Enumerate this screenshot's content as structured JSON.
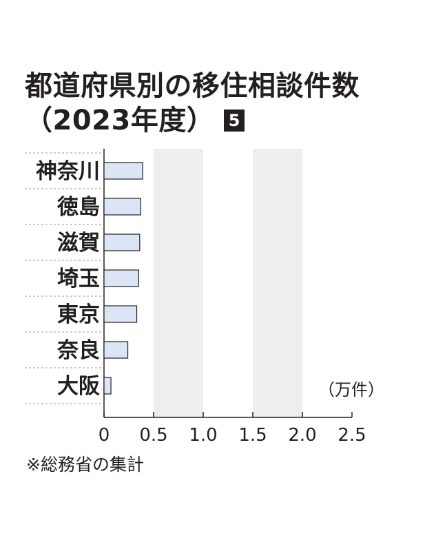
{
  "title": {
    "line1": "都道府県別の移住相談件数",
    "line2": "（2023年度）",
    "badge": "5"
  },
  "unit": "（万件）",
  "note": "※総務省の集計",
  "colors": {
    "bar_fill": "#dbe5f5",
    "bar_stroke": "#231f20",
    "band": "#eeeeee",
    "text": "#231f20"
  },
  "chart_data": {
    "type": "bar",
    "orientation": "horizontal",
    "categories": [
      "神奈川",
      "徳島",
      "滋賀",
      "埼玉",
      "東京",
      "奈良",
      "大阪"
    ],
    "values": [
      0.39,
      0.37,
      0.36,
      0.35,
      0.33,
      0.24,
      0.07
    ],
    "xlim": [
      0,
      2.5
    ],
    "x_ticks": [
      "0",
      "0.5",
      "1.0",
      "1.5",
      "2.0",
      "2.5"
    ],
    "xlabel": "（万件）",
    "alternating_bands": true
  }
}
